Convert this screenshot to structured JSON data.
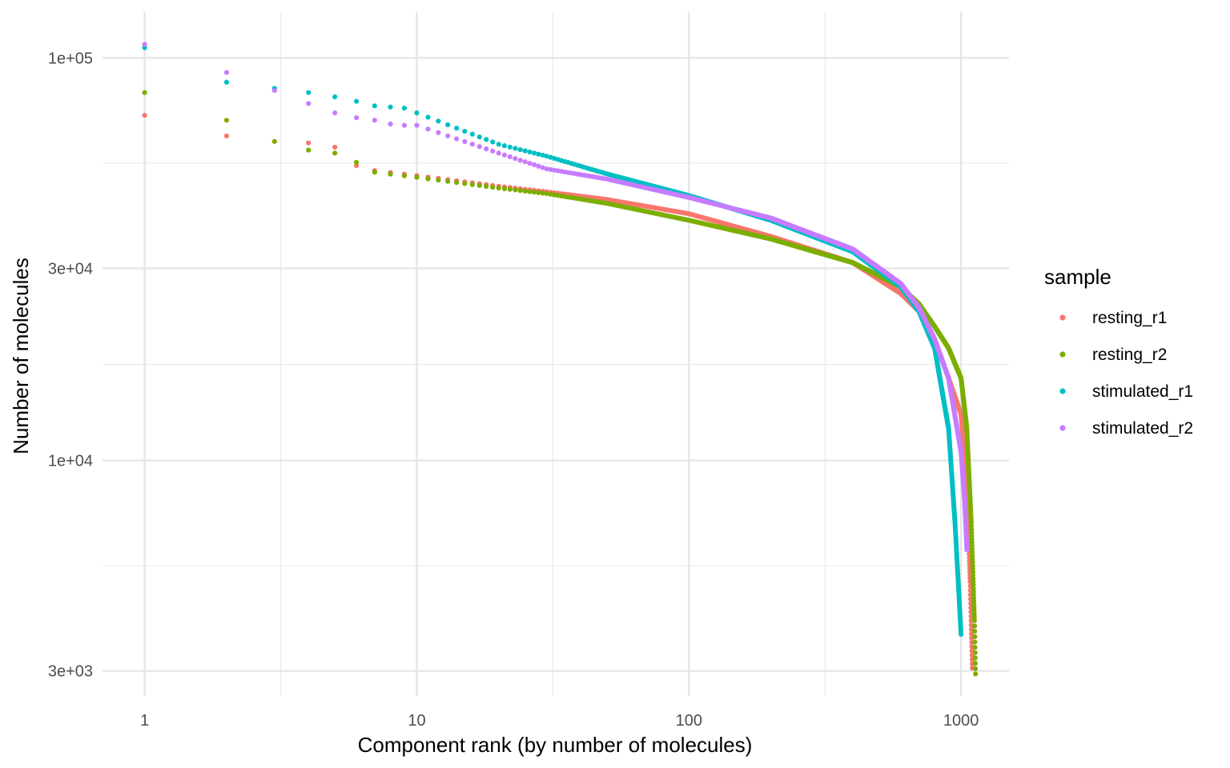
{
  "chart_data": {
    "type": "scatter",
    "xlabel": "Component rank (by number of molecules)",
    "ylabel": "Number of molecules",
    "x_scale": "log10",
    "y_scale": "log10",
    "xlim": [
      0.7,
      1500
    ],
    "ylim": [
      2600,
      130000
    ],
    "x_major_ticks": [
      1,
      10,
      100,
      1000
    ],
    "x_tick_labels": [
      "1",
      "10",
      "100",
      "1000"
    ],
    "x_minor_ticks": [
      3.1623,
      31.623,
      316.23
    ],
    "y_major_ticks": [
      3000,
      10000,
      30000,
      100000
    ],
    "y_tick_labels": [
      "3e+03",
      "1e+04",
      "3e+04",
      "1e+05"
    ],
    "y_minor_ticks": [
      5477,
      17321,
      54772
    ],
    "grid": true,
    "legend": {
      "title": "sample",
      "position": "right"
    },
    "series": [
      {
        "name": "resting_r1",
        "color": "#F8766D",
        "n": 1100,
        "anchors": [
          [
            1,
            72000
          ],
          [
            2,
            64000
          ],
          [
            3,
            62000
          ],
          [
            4,
            61500
          ],
          [
            5,
            60000
          ],
          [
            6,
            54000
          ],
          [
            7,
            52500
          ],
          [
            10,
            51000
          ],
          [
            20,
            48000
          ],
          [
            30,
            46500
          ],
          [
            50,
            44500
          ],
          [
            100,
            41000
          ],
          [
            200,
            36000
          ],
          [
            400,
            31000
          ],
          [
            600,
            26000
          ],
          [
            700,
            23500
          ],
          [
            800,
            20000
          ],
          [
            900,
            16000
          ],
          [
            1000,
            13000
          ],
          [
            1050,
            9000
          ],
          [
            1080,
            5000
          ],
          [
            1100,
            3050
          ]
        ]
      },
      {
        "name": "resting_r2",
        "color": "#7CAE00",
        "n": 1130,
        "anchors": [
          [
            1,
            82000
          ],
          [
            2,
            70000
          ],
          [
            3,
            62000
          ],
          [
            4,
            59000
          ],
          [
            5,
            58000
          ],
          [
            6,
            55000
          ],
          [
            7,
            52000
          ],
          [
            10,
            50500
          ],
          [
            20,
            47500
          ],
          [
            30,
            46000
          ],
          [
            50,
            43500
          ],
          [
            100,
            39500
          ],
          [
            200,
            35500
          ],
          [
            400,
            31000
          ],
          [
            600,
            27000
          ],
          [
            700,
            24500
          ],
          [
            800,
            21500
          ],
          [
            900,
            19000
          ],
          [
            1000,
            16000
          ],
          [
            1050,
            12000
          ],
          [
            1090,
            7000
          ],
          [
            1120,
            4000
          ],
          [
            1130,
            2950
          ]
        ]
      },
      {
        "name": "stimulated_r1",
        "color": "#00BFC4",
        "n": 1000,
        "anchors": [
          [
            1,
            106000
          ],
          [
            2,
            87000
          ],
          [
            3,
            84000
          ],
          [
            4,
            82000
          ],
          [
            5,
            80000
          ],
          [
            6,
            78000
          ],
          [
            7,
            76000
          ],
          [
            8,
            75500
          ],
          [
            9,
            75000
          ],
          [
            10,
            73000
          ],
          [
            20,
            61000
          ],
          [
            30,
            57000
          ],
          [
            50,
            51500
          ],
          [
            100,
            45500
          ],
          [
            200,
            39500
          ],
          [
            400,
            33000
          ],
          [
            600,
            27000
          ],
          [
            700,
            23500
          ],
          [
            800,
            19000
          ],
          [
            900,
            12000
          ],
          [
            950,
            7000
          ],
          [
            1000,
            3700
          ]
        ]
      },
      {
        "name": "stimulated_r2",
        "color": "#C77CFF",
        "n": 1050,
        "anchors": [
          [
            1,
            108000
          ],
          [
            2,
            92000
          ],
          [
            3,
            83000
          ],
          [
            4,
            77000
          ],
          [
            5,
            73000
          ],
          [
            6,
            71000
          ],
          [
            7,
            70000
          ],
          [
            8,
            68500
          ],
          [
            9,
            68000
          ],
          [
            10,
            68000
          ],
          [
            20,
            58000
          ],
          [
            30,
            53000
          ],
          [
            50,
            50000
          ],
          [
            100,
            45000
          ],
          [
            200,
            40000
          ],
          [
            400,
            33500
          ],
          [
            600,
            27500
          ],
          [
            700,
            24000
          ],
          [
            800,
            20000
          ],
          [
            900,
            16000
          ],
          [
            1000,
            10500
          ],
          [
            1030,
            8000
          ],
          [
            1050,
            6000
          ]
        ]
      }
    ]
  }
}
